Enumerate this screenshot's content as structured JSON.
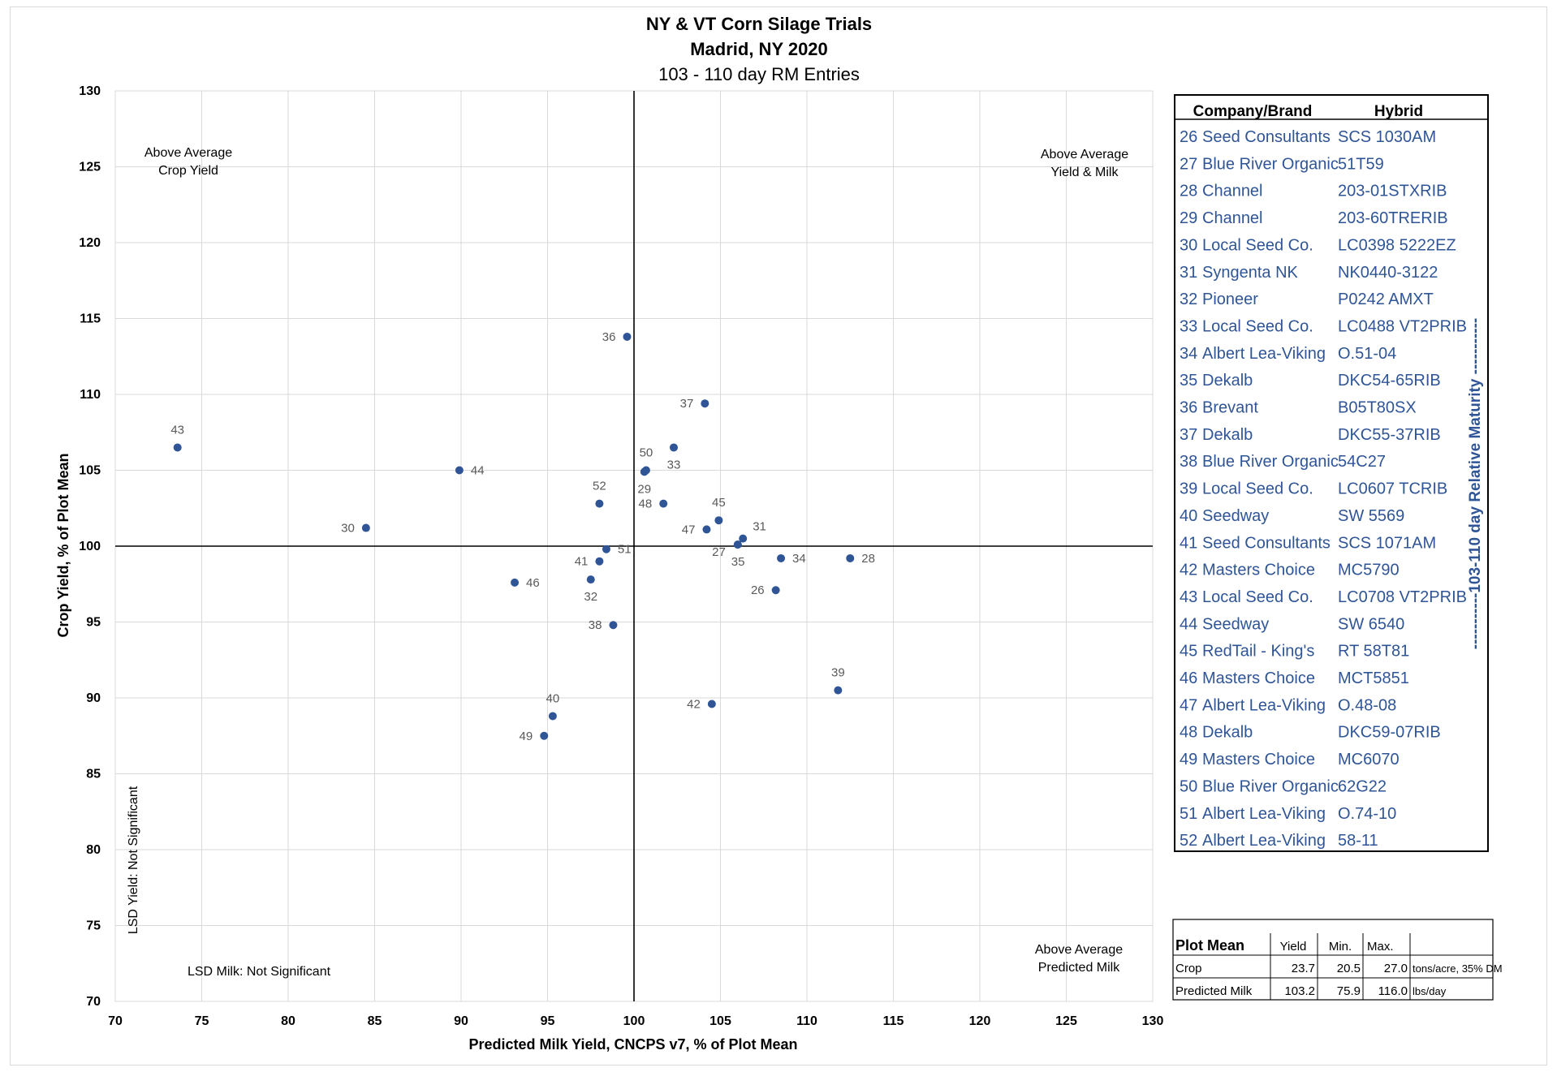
{
  "chart_data": {
    "type": "scatter",
    "title": "NY & VT Corn Silage Trials",
    "subtitle": "Madrid, NY 2020",
    "subtitle2": "103 - 110 day RM Entries",
    "xlabel": "Predicted Milk Yield, CNCPS v7, % of Plot Mean",
    "ylabel": "Crop Yield,  % of Plot Mean",
    "xlim": [
      70,
      130
    ],
    "ylim": [
      70,
      130
    ],
    "xticks": [
      70,
      75,
      80,
      85,
      90,
      95,
      100,
      105,
      110,
      115,
      120,
      125,
      130
    ],
    "yticks": [
      70,
      75,
      80,
      85,
      90,
      95,
      100,
      105,
      110,
      115,
      120,
      125,
      130
    ],
    "grid": true,
    "reference_lines": {
      "x": 100,
      "y": 100
    },
    "marker_color": "#2f5597",
    "points": [
      {
        "label": "26",
        "x": 108.2,
        "y": 97.1,
        "pos": "left"
      },
      {
        "label": "27",
        "x": 106.0,
        "y": 100.1,
        "pos": "below-left"
      },
      {
        "label": "28",
        "x": 112.5,
        "y": 99.2,
        "pos": "right"
      },
      {
        "label": "29",
        "x": 100.6,
        "y": 104.9,
        "pos": "below"
      },
      {
        "label": "30",
        "x": 84.5,
        "y": 101.2,
        "pos": "left"
      },
      {
        "label": "31",
        "x": 106.3,
        "y": 100.5,
        "pos": "above-right"
      },
      {
        "label": "32",
        "x": 97.5,
        "y": 97.8,
        "pos": "below"
      },
      {
        "label": "33",
        "x": 102.3,
        "y": 106.5,
        "pos": "below"
      },
      {
        "label": "34",
        "x": 108.5,
        "y": 99.2,
        "pos": "right"
      },
      {
        "label": "35",
        "x": 106.0,
        "y": 100.1,
        "pos": "below-right"
      },
      {
        "label": "36",
        "x": 99.6,
        "y": 113.8,
        "pos": "left"
      },
      {
        "label": "37",
        "x": 104.1,
        "y": 109.4,
        "pos": "left"
      },
      {
        "label": "38",
        "x": 98.8,
        "y": 94.8,
        "pos": "left"
      },
      {
        "label": "39",
        "x": 111.8,
        "y": 90.5,
        "pos": "above"
      },
      {
        "label": "40",
        "x": 95.3,
        "y": 88.8,
        "pos": "above"
      },
      {
        "label": "41",
        "x": 98.0,
        "y": 99.0,
        "pos": "left"
      },
      {
        "label": "42",
        "x": 104.5,
        "y": 89.6,
        "pos": "left"
      },
      {
        "label": "43",
        "x": 73.6,
        "y": 106.5,
        "pos": "above"
      },
      {
        "label": "44",
        "x": 89.9,
        "y": 105.0,
        "pos": "right"
      },
      {
        "label": "45",
        "x": 104.9,
        "y": 101.7,
        "pos": "above"
      },
      {
        "label": "46",
        "x": 93.1,
        "y": 97.6,
        "pos": "right"
      },
      {
        "label": "47",
        "x": 104.2,
        "y": 101.1,
        "pos": "left"
      },
      {
        "label": "48",
        "x": 101.7,
        "y": 102.8,
        "pos": "left"
      },
      {
        "label": "49",
        "x": 94.8,
        "y": 87.5,
        "pos": "left"
      },
      {
        "label": "50",
        "x": 100.7,
        "y": 105.0,
        "pos": "above"
      },
      {
        "label": "51",
        "x": 98.4,
        "y": 99.8,
        "pos": "right"
      },
      {
        "label": "52",
        "x": 98.0,
        "y": 102.8,
        "pos": "above"
      }
    ],
    "quadrant_labels": {
      "top_left": [
        "Above Average",
        "Crop Yield"
      ],
      "top_right": [
        "Above Average",
        "Yield & Milk"
      ],
      "bottom_right": [
        "Above Average",
        "Predicted Milk"
      ]
    },
    "lsd_yield": "LSD Yield:  Not Significant",
    "lsd_milk": "LSD Milk: Not Significant"
  },
  "legend_table": {
    "col_company": "Company/Brand",
    "col_hybrid": "Hybrid",
    "side_label": "-----------103-110 day Relative Maturity -----------",
    "rows": [
      {
        "entry": "26",
        "company": "Seed Consultants",
        "hybrid": "SCS 1030AM"
      },
      {
        "entry": "27",
        "company": "Blue River Organic",
        "hybrid": "51T59"
      },
      {
        "entry": "28",
        "company": "Channel",
        "hybrid": "203-01STXRIB"
      },
      {
        "entry": "29",
        "company": "Channel",
        "hybrid": "203-60TRERIB"
      },
      {
        "entry": "30",
        "company": "Local Seed Co.",
        "hybrid": "LC0398 5222EZ"
      },
      {
        "entry": "31",
        "company": "Syngenta NK",
        "hybrid": "NK0440-3122"
      },
      {
        "entry": "32",
        "company": "Pioneer",
        "hybrid": "P0242 AMXT"
      },
      {
        "entry": "33",
        "company": "Local Seed Co.",
        "hybrid": "LC0488 VT2PRIB"
      },
      {
        "entry": "34",
        "company": "Albert Lea-Viking",
        "hybrid": "O.51-04"
      },
      {
        "entry": "35",
        "company": "Dekalb",
        "hybrid": "DKC54-65RIB"
      },
      {
        "entry": "36",
        "company": "Brevant",
        "hybrid": "B05T80SX"
      },
      {
        "entry": "37",
        "company": "Dekalb",
        "hybrid": "DKC55-37RIB"
      },
      {
        "entry": "38",
        "company": "Blue River Organic",
        "hybrid": "54C27"
      },
      {
        "entry": "39",
        "company": "Local Seed Co.",
        "hybrid": "LC0607 TCRIB"
      },
      {
        "entry": "40",
        "company": "Seedway",
        "hybrid": "SW 5569"
      },
      {
        "entry": "41",
        "company": "Seed Consultants",
        "hybrid": "SCS 1071AM"
      },
      {
        "entry": "42",
        "company": "Masters Choice",
        "hybrid": "MC5790"
      },
      {
        "entry": "43",
        "company": "Local Seed Co.",
        "hybrid": "LC0708 VT2PRIB"
      },
      {
        "entry": "44",
        "company": "Seedway",
        "hybrid": "SW 6540"
      },
      {
        "entry": "45",
        "company": "RedTail - King's",
        "hybrid": "RT 58T81"
      },
      {
        "entry": "46",
        "company": "Masters Choice",
        "hybrid": "MCT5851"
      },
      {
        "entry": "47",
        "company": "Albert Lea-Viking",
        "hybrid": "O.48-08"
      },
      {
        "entry": "48",
        "company": "Dekalb",
        "hybrid": "DKC59-07RIB"
      },
      {
        "entry": "49",
        "company": "Masters Choice",
        "hybrid": "MC6070"
      },
      {
        "entry": "50",
        "company": "Blue River Organic",
        "hybrid": "62G22"
      },
      {
        "entry": "51",
        "company": "Albert Lea-Viking",
        "hybrid": "O.74-10"
      },
      {
        "entry": "52",
        "company": "Albert Lea-Viking",
        "hybrid": "58-11"
      }
    ]
  },
  "plot_mean_table": {
    "title": "Plot Mean",
    "headers": [
      "Yield",
      "Min.",
      "Max."
    ],
    "rows": [
      {
        "label": "Crop",
        "values": [
          "23.7",
          "20.5",
          "27.0"
        ],
        "unit": "tons/acre, 35% DM"
      },
      {
        "label": "Predicted Milk",
        "values": [
          "103.2",
          "75.9",
          "116.0"
        ],
        "unit": "lbs/day"
      }
    ]
  }
}
